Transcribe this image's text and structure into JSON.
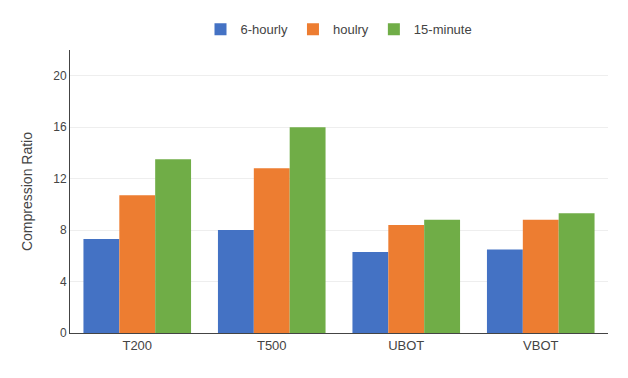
{
  "chart_data": {
    "type": "bar",
    "categories": [
      "T200",
      "T500",
      "UBOT",
      "VBOT"
    ],
    "series": [
      {
        "name": "6-hourly",
        "color": "#4472C4",
        "values": [
          7.3,
          8.0,
          6.3,
          6.5
        ]
      },
      {
        "name": "houlry",
        "color": "#ED7D31",
        "values": [
          10.7,
          12.8,
          8.4,
          8.8
        ]
      },
      {
        "name": "15-minute",
        "color": "#70AD47",
        "values": [
          13.5,
          16.0,
          8.8,
          9.3
        ]
      }
    ],
    "ylabel": "Compression Ratio",
    "ylim": [
      0,
      22
    ],
    "yticks": [
      0,
      4,
      8,
      12,
      16,
      20
    ],
    "grid": true,
    "legend": "top"
  }
}
